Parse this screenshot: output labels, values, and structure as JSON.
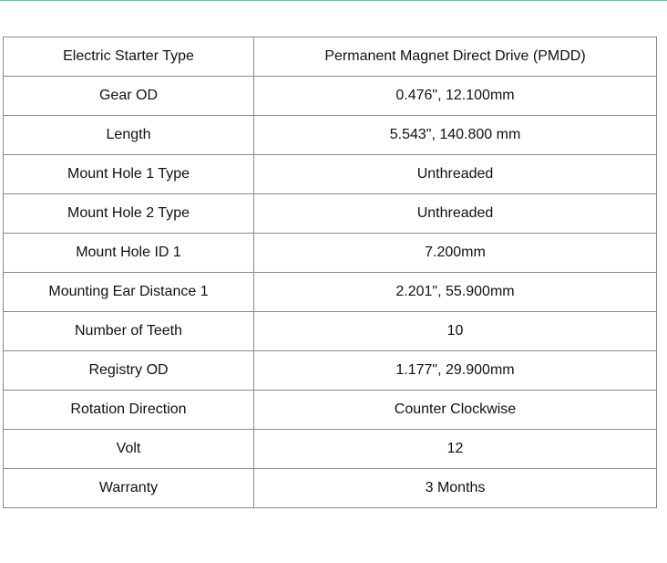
{
  "specs": [
    {
      "label": "Electric Starter Type",
      "value": "Permanent Magnet Direct Drive (PMDD)"
    },
    {
      "label": "Gear OD",
      "value": "0.476\", 12.100mm"
    },
    {
      "label": "Length",
      "value": "5.543\", 140.800 mm"
    },
    {
      "label": "Mount Hole 1 Type",
      "value": "Unthreaded"
    },
    {
      "label": "Mount Hole 2 Type",
      "value": "Unthreaded"
    },
    {
      "label": "Mount Hole ID 1",
      "value": "7.200mm"
    },
    {
      "label": "Mounting Ear Distance 1",
      "value": "2.201\", 55.900mm"
    },
    {
      "label": "Number of Teeth",
      "value": "10"
    },
    {
      "label": "Registry OD",
      "value": "1.177\", 29.900mm"
    },
    {
      "label": "Rotation Direction",
      "value": "Counter Clockwise"
    },
    {
      "label": "Volt",
      "value": "12"
    },
    {
      "label": "Warranty",
      "value": "3 Months"
    }
  ]
}
